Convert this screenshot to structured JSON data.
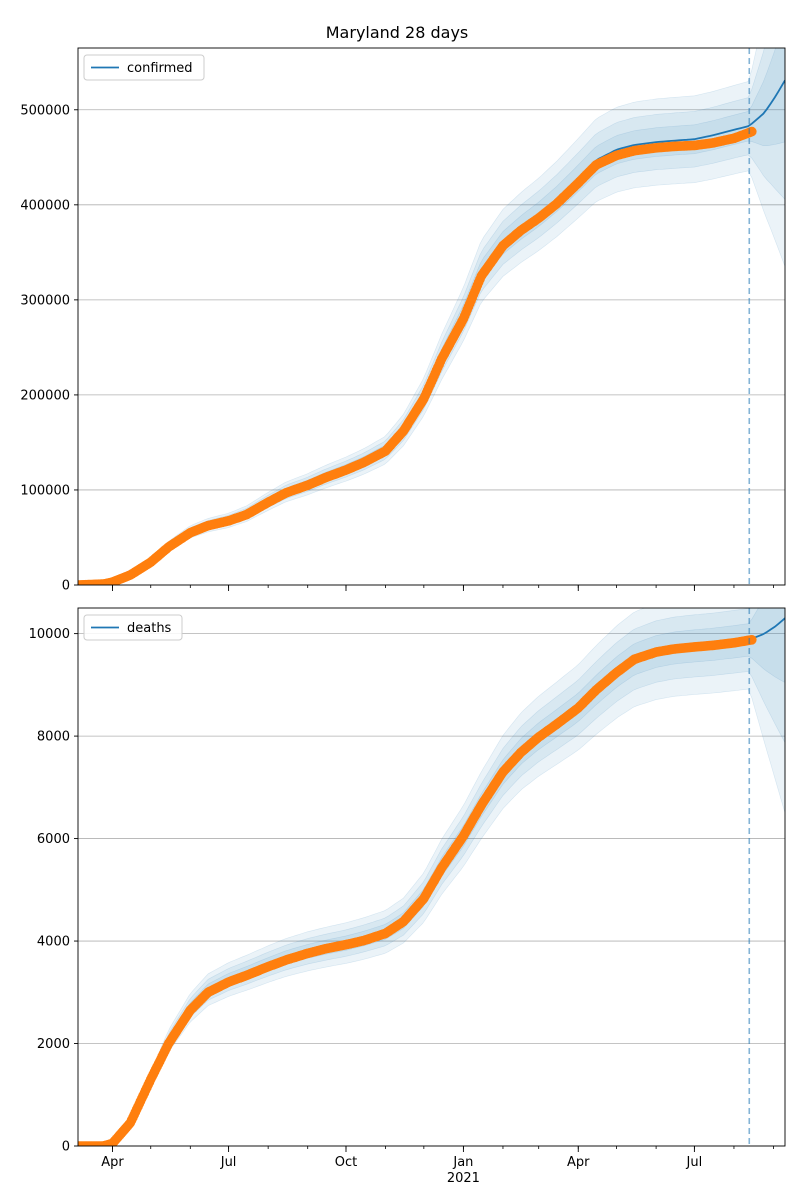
{
  "chart_data": {
    "type": "line",
    "title": "Maryland 28 days",
    "x_axis": {
      "start": "2020-03-05",
      "end": "2021-09-10",
      "ticks": [
        {
          "date": "2020-04-01",
          "label": "Apr"
        },
        {
          "date": "2020-07-01",
          "label": "Jul"
        },
        {
          "date": "2020-10-01",
          "label": "Oct"
        },
        {
          "date": "2021-01-01",
          "label": "Jan",
          "sublabel": "2021"
        },
        {
          "date": "2021-04-01",
          "label": "Apr"
        },
        {
          "date": "2021-07-01",
          "label": "Jul"
        }
      ],
      "forecast_start": "2021-08-13"
    },
    "colors": {
      "model": "#1f77b4",
      "observed": "#ff7f0e",
      "band": "#1f77b4",
      "grid": "#b0b0b0"
    },
    "panels": [
      {
        "name": "confirmed",
        "legend": "confirmed",
        "legend_position": "upper-left",
        "ylim": [
          0,
          565000
        ],
        "yticks": [
          0,
          100000,
          200000,
          300000,
          400000,
          500000
        ],
        "grid": true,
        "model": [
          [
            "2020-03-05",
            0
          ],
          [
            "2020-03-25",
            1000
          ],
          [
            "2020-04-01",
            3500
          ],
          [
            "2020-04-15",
            11000
          ],
          [
            "2020-05-01",
            25000
          ],
          [
            "2020-05-15",
            41000
          ],
          [
            "2020-06-01",
            56000
          ],
          [
            "2020-06-15",
            63000
          ],
          [
            "2020-07-01",
            68000
          ],
          [
            "2020-07-15",
            75000
          ],
          [
            "2020-08-01",
            88000
          ],
          [
            "2020-08-15",
            98000
          ],
          [
            "2020-09-01",
            106000
          ],
          [
            "2020-09-15",
            114000
          ],
          [
            "2020-10-01",
            122000
          ],
          [
            "2020-10-15",
            130000
          ],
          [
            "2020-11-01",
            142000
          ],
          [
            "2020-11-15",
            163000
          ],
          [
            "2020-12-01",
            198000
          ],
          [
            "2020-12-15",
            240000
          ],
          [
            "2021-01-01",
            285000
          ],
          [
            "2021-01-15",
            330000
          ],
          [
            "2021-02-01",
            360000
          ],
          [
            "2021-02-15",
            376000
          ],
          [
            "2021-03-01",
            390000
          ],
          [
            "2021-03-15",
            406000
          ],
          [
            "2021-04-01",
            428000
          ],
          [
            "2021-04-15",
            447000
          ],
          [
            "2021-05-01",
            458000
          ],
          [
            "2021-05-15",
            463000
          ],
          [
            "2021-06-01",
            466000
          ],
          [
            "2021-06-15",
            467500
          ],
          [
            "2021-07-01",
            469000
          ],
          [
            "2021-07-15",
            473000
          ],
          [
            "2021-08-01",
            479000
          ],
          [
            "2021-08-13",
            483000
          ],
          [
            "2021-08-25",
            497000
          ],
          [
            "2021-09-03",
            515000
          ],
          [
            "2021-09-10",
            531000
          ]
        ],
        "observed": [
          [
            "2020-03-05",
            0
          ],
          [
            "2020-03-25",
            1000
          ],
          [
            "2020-04-01",
            3000
          ],
          [
            "2020-04-15",
            10500
          ],
          [
            "2020-05-01",
            24000
          ],
          [
            "2020-05-15",
            40000
          ],
          [
            "2020-06-01",
            55000
          ],
          [
            "2020-06-15",
            62500
          ],
          [
            "2020-07-01",
            67500
          ],
          [
            "2020-07-15",
            74000
          ],
          [
            "2020-08-01",
            87000
          ],
          [
            "2020-08-15",
            97000
          ],
          [
            "2020-09-01",
            105000
          ],
          [
            "2020-09-15",
            113000
          ],
          [
            "2020-10-01",
            121000
          ],
          [
            "2020-10-15",
            129000
          ],
          [
            "2020-11-01",
            141000
          ],
          [
            "2020-11-15",
            162000
          ],
          [
            "2020-12-01",
            196000
          ],
          [
            "2020-12-15",
            238000
          ],
          [
            "2021-01-01",
            280000
          ],
          [
            "2021-01-15",
            325000
          ],
          [
            "2021-02-01",
            357000
          ],
          [
            "2021-02-15",
            373000
          ],
          [
            "2021-03-01",
            386000
          ],
          [
            "2021-03-15",
            401000
          ],
          [
            "2021-04-01",
            423000
          ],
          [
            "2021-04-15",
            442000
          ],
          [
            "2021-05-01",
            452000
          ],
          [
            "2021-05-15",
            457000
          ],
          [
            "2021-06-01",
            460000
          ],
          [
            "2021-06-15",
            461500
          ],
          [
            "2021-07-01",
            462500
          ],
          [
            "2021-07-15",
            465000
          ],
          [
            "2021-08-01",
            470000
          ],
          [
            "2021-08-15",
            477000
          ]
        ]
      },
      {
        "name": "deaths",
        "legend": "deaths",
        "legend_position": "upper-left",
        "ylim": [
          0,
          10500
        ],
        "yticks": [
          0,
          2000,
          4000,
          6000,
          8000,
          10000
        ],
        "grid": true,
        "model": [
          [
            "2020-03-05",
            0
          ],
          [
            "2020-03-25",
            0
          ],
          [
            "2020-04-01",
            100
          ],
          [
            "2020-04-15",
            500
          ],
          [
            "2020-05-01",
            1300
          ],
          [
            "2020-05-15",
            2050
          ],
          [
            "2020-06-01",
            2700
          ],
          [
            "2020-06-15",
            3050
          ],
          [
            "2020-07-01",
            3250
          ],
          [
            "2020-07-15",
            3380
          ],
          [
            "2020-08-01",
            3550
          ],
          [
            "2020-08-15",
            3680
          ],
          [
            "2020-09-01",
            3800
          ],
          [
            "2020-09-15",
            3880
          ],
          [
            "2020-10-01",
            3960
          ],
          [
            "2020-10-15",
            4050
          ],
          [
            "2020-11-01",
            4180
          ],
          [
            "2020-11-15",
            4400
          ],
          [
            "2020-12-01",
            4850
          ],
          [
            "2020-12-15",
            5450
          ],
          [
            "2021-01-01",
            6050
          ],
          [
            "2021-01-15",
            6650
          ],
          [
            "2021-02-01",
            7300
          ],
          [
            "2021-02-15",
            7700
          ],
          [
            "2021-03-01",
            8000
          ],
          [
            "2021-03-15",
            8250
          ],
          [
            "2021-04-01",
            8560
          ],
          [
            "2021-04-15",
            8900
          ],
          [
            "2021-05-01",
            9250
          ],
          [
            "2021-05-15",
            9500
          ],
          [
            "2021-06-01",
            9650
          ],
          [
            "2021-06-15",
            9720
          ],
          [
            "2021-07-01",
            9760
          ],
          [
            "2021-07-15",
            9790
          ],
          [
            "2021-08-01",
            9840
          ],
          [
            "2021-08-13",
            9880
          ],
          [
            "2021-08-25",
            10000
          ],
          [
            "2021-09-03",
            10150
          ],
          [
            "2021-09-10",
            10300
          ]
        ],
        "observed": [
          [
            "2020-03-05",
            0
          ],
          [
            "2020-03-25",
            0
          ],
          [
            "2020-04-01",
            50
          ],
          [
            "2020-04-15",
            450
          ],
          [
            "2020-05-01",
            1300
          ],
          [
            "2020-05-15",
            2000
          ],
          [
            "2020-06-01",
            2650
          ],
          [
            "2020-06-15",
            3000
          ],
          [
            "2020-07-01",
            3200
          ],
          [
            "2020-07-15",
            3330
          ],
          [
            "2020-08-01",
            3500
          ],
          [
            "2020-08-15",
            3630
          ],
          [
            "2020-09-01",
            3760
          ],
          [
            "2020-09-15",
            3850
          ],
          [
            "2020-10-01",
            3930
          ],
          [
            "2020-10-15",
            4010
          ],
          [
            "2020-11-01",
            4150
          ],
          [
            "2020-11-15",
            4380
          ],
          [
            "2020-12-01",
            4830
          ],
          [
            "2020-12-15",
            5430
          ],
          [
            "2021-01-01",
            6050
          ],
          [
            "2021-01-15",
            6650
          ],
          [
            "2021-02-01",
            7300
          ],
          [
            "2021-02-15",
            7680
          ],
          [
            "2021-03-01",
            7980
          ],
          [
            "2021-03-15",
            8230
          ],
          [
            "2021-04-01",
            8550
          ],
          [
            "2021-04-15",
            8900
          ],
          [
            "2021-05-01",
            9240
          ],
          [
            "2021-05-15",
            9500
          ],
          [
            "2021-06-01",
            9640
          ],
          [
            "2021-06-15",
            9700
          ],
          [
            "2021-07-01",
            9740
          ],
          [
            "2021-07-15",
            9770
          ],
          [
            "2021-08-01",
            9820
          ],
          [
            "2021-08-15",
            9880
          ]
        ]
      }
    ]
  }
}
